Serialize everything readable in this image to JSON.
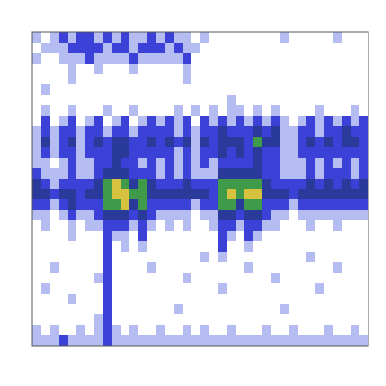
{
  "chart_data": {
    "type": "heatmap",
    "tick_labels": false,
    "cells": [
      [
        1,
        0,
        1,
        2,
        1,
        2,
        2,
        1,
        2,
        1,
        2,
        1,
        1,
        2,
        1,
        2,
        1,
        1,
        0,
        1,
        0,
        0,
        0,
        0,
        0,
        0,
        0,
        0,
        1,
        0,
        0,
        0,
        0,
        0,
        1,
        0,
        0,
        0
      ],
      [
        0,
        1,
        1,
        1,
        2,
        2,
        2,
        2,
        1,
        2,
        2,
        1,
        2,
        2,
        2,
        1,
        2,
        1,
        1,
        0,
        0,
        0,
        0,
        0,
        0,
        0,
        0,
        0,
        0,
        0,
        0,
        0,
        0,
        0,
        0,
        0,
        0,
        0
      ],
      [
        1,
        0,
        0,
        1,
        1,
        1,
        2,
        1,
        1,
        1,
        1,
        2,
        1,
        1,
        1,
        1,
        1,
        2,
        0,
        0,
        0,
        0,
        0,
        0,
        0,
        0,
        0,
        0,
        0,
        0,
        0,
        0,
        0,
        0,
        0,
        0,
        0,
        0
      ],
      [
        0,
        0,
        0,
        0,
        1,
        0,
        0,
        1,
        0,
        0,
        0,
        1,
        0,
        0,
        0,
        0,
        0,
        1,
        0,
        0,
        0,
        0,
        0,
        0,
        0,
        0,
        0,
        0,
        0,
        0,
        0,
        0,
        0,
        0,
        0,
        0,
        0,
        0
      ],
      [
        0,
        0,
        0,
        0,
        1,
        0,
        0,
        0,
        0,
        0,
        0,
        0,
        0,
        0,
        0,
        0,
        0,
        1,
        0,
        0,
        0,
        0,
        0,
        0,
        0,
        0,
        0,
        0,
        0,
        0,
        0,
        0,
        0,
        0,
        0,
        0,
        0,
        0
      ],
      [
        0,
        1,
        0,
        0,
        0,
        0,
        0,
        0,
        0,
        0,
        0,
        0,
        0,
        0,
        0,
        0,
        0,
        0,
        0,
        0,
        0,
        0,
        0,
        0,
        0,
        0,
        0,
        0,
        0,
        0,
        0,
        0,
        0,
        0,
        0,
        0,
        0,
        0
      ],
      [
        0,
        0,
        0,
        0,
        0,
        0,
        0,
        0,
        0,
        0,
        0,
        0,
        0,
        0,
        0,
        0,
        0,
        0,
        0,
        0,
        0,
        0,
        1,
        0,
        0,
        0,
        0,
        0,
        0,
        0,
        0,
        0,
        0,
        0,
        0,
        0,
        0,
        0
      ],
      [
        0,
        1,
        0,
        0,
        1,
        0,
        0,
        0,
        1,
        0,
        0,
        1,
        0,
        0,
        0,
        0,
        1,
        0,
        1,
        0,
        1,
        0,
        1,
        1,
        0,
        1,
        0,
        1,
        0,
        0,
        0,
        0,
        1,
        0,
        0,
        0,
        1,
        0
      ],
      [
        0,
        2,
        0,
        1,
        2,
        0,
        1,
        2,
        0,
        1,
        2,
        0,
        1,
        2,
        1,
        2,
        1,
        2,
        0,
        2,
        1,
        2,
        1,
        2,
        1,
        2,
        1,
        2,
        1,
        0,
        1,
        2,
        1,
        2,
        1,
        2,
        1,
        2
      ],
      [
        1,
        2,
        1,
        2,
        2,
        1,
        2,
        2,
        1,
        2,
        2,
        1,
        2,
        2,
        2,
        2,
        1,
        2,
        1,
        2,
        2,
        3,
        2,
        2,
        2,
        3,
        2,
        3,
        1,
        1,
        2,
        2,
        1,
        2,
        2,
        3,
        2,
        2
      ],
      [
        1,
        3,
        1,
        2,
        3,
        1,
        2,
        3,
        2,
        3,
        3,
        2,
        2,
        3,
        2,
        3,
        2,
        3,
        1,
        3,
        2,
        3,
        3,
        3,
        2,
        4,
        3,
        3,
        1,
        1,
        2,
        3,
        2,
        3,
        2,
        3,
        3,
        2
      ],
      [
        1,
        2,
        1,
        2,
        2,
        1,
        2,
        2,
        2,
        3,
        3,
        2,
        2,
        2,
        2,
        2,
        1,
        2,
        1,
        2,
        2,
        3,
        2,
        3,
        2,
        3,
        2,
        2,
        1,
        1,
        2,
        2,
        2,
        2,
        2,
        2,
        2,
        2
      ],
      [
        1,
        1,
        0,
        1,
        2,
        1,
        1,
        2,
        2,
        3,
        2,
        2,
        1,
        2,
        1,
        2,
        1,
        2,
        1,
        2,
        1,
        2,
        2,
        2,
        2,
        3,
        2,
        2,
        1,
        1,
        1,
        2,
        1,
        2,
        1,
        2,
        1,
        2
      ],
      [
        2,
        1,
        1,
        1,
        2,
        1,
        1,
        2,
        3,
        3,
        3,
        2,
        2,
        2,
        1,
        2,
        1,
        2,
        1,
        1,
        1,
        3,
        3,
        3,
        3,
        3,
        2,
        2,
        1,
        1,
        1,
        2,
        1,
        2,
        2,
        2,
        1,
        2
      ],
      [
        3,
        2,
        1,
        2,
        2,
        2,
        2,
        3,
        4,
        5,
        4,
        3,
        4,
        3,
        2,
        2,
        2,
        3,
        2,
        2,
        2,
        4,
        4,
        4,
        4,
        4,
        3,
        2,
        2,
        2,
        2,
        3,
        2,
        3,
        2,
        3,
        2,
        3
      ],
      [
        3,
        3,
        2,
        3,
        3,
        2,
        3,
        3,
        4,
        5,
        5,
        4,
        4,
        3,
        3,
        3,
        3,
        3,
        3,
        3,
        2,
        4,
        5,
        4,
        5,
        5,
        3,
        3,
        3,
        2,
        3,
        3,
        3,
        3,
        3,
        3,
        3,
        3
      ],
      [
        2,
        2,
        1,
        2,
        3,
        2,
        2,
        2,
        4,
        4,
        5,
        3,
        4,
        2,
        2,
        2,
        2,
        2,
        1,
        2,
        2,
        4,
        4,
        3,
        4,
        4,
        2,
        2,
        2,
        1,
        2,
        2,
        2,
        2,
        2,
        2,
        2,
        2
      ],
      [
        1,
        1,
        0,
        1,
        2,
        1,
        1,
        2,
        3,
        3,
        3,
        2,
        3,
        2,
        1,
        1,
        1,
        1,
        0,
        1,
        1,
        3,
        3,
        2,
        3,
        3,
        2,
        1,
        1,
        0,
        1,
        1,
        1,
        1,
        1,
        1,
        1,
        1
      ],
      [
        0,
        1,
        0,
        0,
        1,
        0,
        1,
        1,
        2,
        2,
        2,
        1,
        2,
        1,
        0,
        1,
        0,
        1,
        0,
        0,
        1,
        2,
        2,
        1,
        2,
        2,
        1,
        1,
        0,
        0,
        0,
        1,
        0,
        0,
        1,
        0,
        0,
        0
      ],
      [
        0,
        0,
        0,
        0,
        1,
        0,
        0,
        0,
        2,
        1,
        1,
        0,
        2,
        0,
        0,
        0,
        0,
        0,
        0,
        0,
        0,
        2,
        1,
        0,
        2,
        1,
        0,
        0,
        0,
        0,
        0,
        0,
        0,
        0,
        0,
        0,
        0,
        0
      ],
      [
        0,
        0,
        0,
        0,
        0,
        0,
        0,
        0,
        2,
        0,
        1,
        0,
        1,
        0,
        0,
        0,
        0,
        0,
        0,
        0,
        0,
        2,
        0,
        0,
        1,
        0,
        0,
        0,
        0,
        0,
        0,
        0,
        0,
        0,
        0,
        0,
        0,
        0
      ],
      [
        0,
        0,
        0,
        0,
        0,
        0,
        0,
        0,
        2,
        0,
        0,
        0,
        0,
        0,
        0,
        0,
        0,
        0,
        0,
        1,
        0,
        1,
        0,
        0,
        0,
        0,
        0,
        0,
        0,
        0,
        0,
        1,
        0,
        0,
        0,
        0,
        0,
        0
      ],
      [
        0,
        0,
        1,
        0,
        0,
        0,
        0,
        0,
        2,
        0,
        0,
        0,
        0,
        1,
        0,
        0,
        0,
        0,
        0,
        0,
        0,
        0,
        0,
        0,
        1,
        0,
        0,
        0,
        0,
        0,
        0,
        0,
        0,
        0,
        1,
        0,
        0,
        0
      ],
      [
        0,
        0,
        0,
        0,
        0,
        0,
        0,
        1,
        2,
        0,
        0,
        0,
        0,
        0,
        0,
        0,
        0,
        1,
        0,
        0,
        0,
        0,
        0,
        0,
        0,
        0,
        0,
        1,
        0,
        0,
        0,
        0,
        0,
        0,
        0,
        0,
        0,
        0
      ],
      [
        0,
        1,
        0,
        0,
        0,
        0,
        0,
        0,
        2,
        0,
        0,
        0,
        0,
        0,
        0,
        0,
        0,
        0,
        0,
        0,
        0,
        1,
        0,
        0,
        0,
        0,
        0,
        0,
        0,
        0,
        0,
        0,
        1,
        0,
        0,
        0,
        0,
        0
      ],
      [
        0,
        0,
        0,
        0,
        1,
        0,
        0,
        0,
        2,
        0,
        0,
        0,
        0,
        0,
        0,
        0,
        0,
        0,
        0,
        0,
        0,
        0,
        0,
        0,
        0,
        0,
        0,
        0,
        0,
        0,
        0,
        0,
        0,
        0,
        0,
        0,
        0,
        0
      ],
      [
        0,
        0,
        0,
        0,
        0,
        0,
        0,
        0,
        2,
        0,
        0,
        0,
        0,
        0,
        0,
        0,
        1,
        0,
        0,
        0,
        0,
        0,
        0,
        0,
        0,
        0,
        0,
        0,
        1,
        0,
        0,
        0,
        0,
        0,
        0,
        0,
        0,
        0
      ],
      [
        0,
        0,
        0,
        0,
        0,
        0,
        0,
        1,
        2,
        0,
        0,
        0,
        0,
        0,
        0,
        0,
        0,
        0,
        0,
        0,
        0,
        0,
        0,
        0,
        0,
        0,
        0,
        0,
        0,
        0,
        0,
        0,
        0,
        0,
        0,
        0,
        0,
        0
      ],
      [
        1,
        0,
        1,
        0,
        0,
        1,
        0,
        1,
        2,
        1,
        0,
        1,
        0,
        0,
        1,
        0,
        0,
        1,
        0,
        1,
        0,
        0,
        1,
        0,
        0,
        0,
        1,
        0,
        0,
        1,
        0,
        0,
        0,
        1,
        0,
        0,
        1,
        0
      ],
      [
        1,
        1,
        1,
        2,
        1,
        1,
        1,
        1,
        2,
        1,
        1,
        1,
        1,
        1,
        1,
        1,
        1,
        1,
        1,
        1,
        1,
        1,
        1,
        1,
        1,
        1,
        1,
        1,
        1,
        1,
        1,
        1,
        1,
        1,
        1,
        1,
        1,
        1
      ]
    ]
  }
}
